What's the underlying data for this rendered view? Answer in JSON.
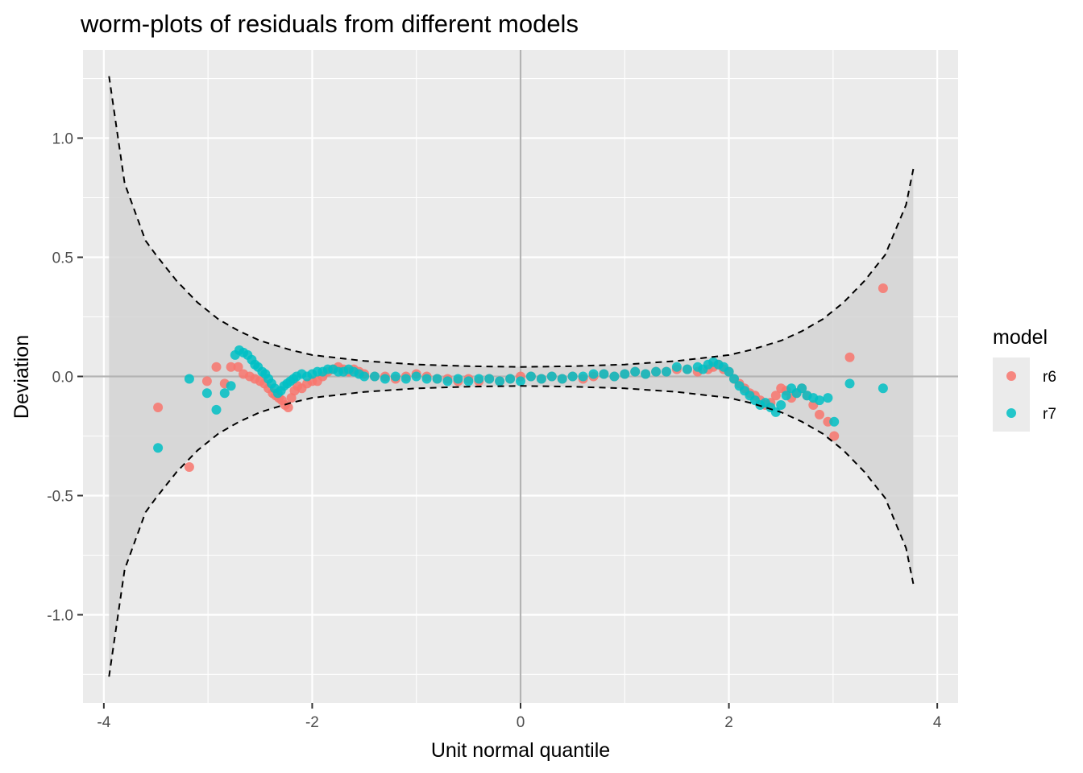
{
  "chart_data": {
    "type": "scatter",
    "title": "worm-plots of residuals from different models",
    "xlabel": "Unit normal quantile",
    "ylabel": "Deviation",
    "xlim": [
      -4.2,
      4.2
    ],
    "ylim": [
      -1.37,
      1.37
    ],
    "x_ticks": [
      -4,
      -2,
      0,
      2,
      4
    ],
    "x_tick_labels": [
      "-4",
      "-2",
      "0",
      "2",
      "4"
    ],
    "y_ticks": [
      -1.0,
      -0.5,
      0.0,
      0.5,
      1.0
    ],
    "y_tick_labels": [
      "-1.0",
      "-0.5",
      "0.0",
      "0.5",
      "1.0"
    ],
    "grid": true,
    "legend": {
      "title": "model",
      "position": "right"
    },
    "reference_lines": {
      "x": 0,
      "y": 0,
      "color": "#b3b3b3"
    },
    "confidence_band": {
      "style": "dashed",
      "fill": "#d3d3d3",
      "x": [
        -3.95,
        -3.8,
        -3.6,
        -3.5,
        -3.3,
        -3.1,
        -2.9,
        -2.7,
        -2.5,
        -2.2,
        -2.0,
        -1.5,
        -1.0,
        -0.5,
        0.0,
        0.5,
        1.0,
        1.5,
        2.0,
        2.2,
        2.5,
        2.7,
        2.9,
        3.1,
        3.3,
        3.5,
        3.7,
        3.77
      ],
      "upper": [
        1.26,
        0.81,
        0.57,
        0.51,
        0.4,
        0.31,
        0.24,
        0.19,
        0.15,
        0.11,
        0.09,
        0.065,
        0.05,
        0.043,
        0.04,
        0.043,
        0.05,
        0.065,
        0.09,
        0.11,
        0.15,
        0.19,
        0.24,
        0.31,
        0.4,
        0.51,
        0.72,
        0.87
      ],
      "lower": [
        -1.26,
        -0.81,
        -0.57,
        -0.51,
        -0.4,
        -0.31,
        -0.24,
        -0.19,
        -0.15,
        -0.11,
        -0.09,
        -0.065,
        -0.05,
        -0.043,
        -0.04,
        -0.043,
        -0.05,
        -0.065,
        -0.09,
        -0.11,
        -0.15,
        -0.19,
        -0.24,
        -0.31,
        -0.4,
        -0.51,
        -0.72,
        -0.87
      ]
    },
    "series": [
      {
        "name": "r6",
        "color": "#F8766D",
        "x": [
          -3.48,
          -3.18,
          -3.01,
          -2.92,
          -2.84,
          -2.78,
          -2.71,
          -2.66,
          -2.6,
          -2.55,
          -2.5,
          -2.46,
          -2.42,
          -2.38,
          -2.35,
          -2.32,
          -2.29,
          -2.26,
          -2.23,
          -2.2,
          -2.17,
          -2.14,
          -2.1,
          -2.05,
          -2.0,
          -1.95,
          -1.9,
          -1.85,
          -1.8,
          -1.75,
          -1.7,
          -1.65,
          -1.6,
          -1.55,
          -1.5,
          -1.4,
          -1.3,
          -1.2,
          -1.1,
          -1.0,
          -0.9,
          -0.8,
          -0.7,
          -0.6,
          -0.5,
          -0.4,
          -0.3,
          -0.2,
          -0.1,
          0.0,
          0.1,
          0.2,
          0.3,
          0.4,
          0.5,
          0.6,
          0.7,
          0.8,
          0.9,
          1.0,
          1.1,
          1.2,
          1.3,
          1.4,
          1.5,
          1.6,
          1.7,
          1.8,
          1.85,
          1.9,
          1.95,
          2.0,
          2.05,
          2.1,
          2.15,
          2.2,
          2.25,
          2.3,
          2.35,
          2.4,
          2.45,
          2.5,
          2.55,
          2.6,
          2.65,
          2.7,
          2.75,
          2.81,
          2.87,
          2.95,
          3.01,
          3.16,
          3.48
        ],
        "y": [
          -0.13,
          -0.38,
          -0.02,
          0.04,
          -0.03,
          0.04,
          0.04,
          0.01,
          0.0,
          -0.01,
          -0.02,
          -0.03,
          -0.05,
          -0.07,
          -0.08,
          -0.09,
          -0.1,
          -0.12,
          -0.13,
          -0.09,
          -0.06,
          -0.04,
          -0.05,
          -0.03,
          -0.02,
          -0.02,
          0.0,
          0.02,
          0.03,
          0.04,
          0.03,
          0.02,
          0.03,
          0.02,
          0.01,
          0.0,
          0.0,
          -0.01,
          0.0,
          0.01,
          0.0,
          -0.01,
          -0.01,
          -0.02,
          -0.01,
          -0.02,
          -0.01,
          -0.02,
          -0.01,
          0.0,
          0.0,
          -0.01,
          0.0,
          -0.01,
          0.0,
          -0.01,
          0.0,
          0.01,
          0.0,
          0.01,
          0.02,
          0.01,
          0.02,
          0.02,
          0.03,
          0.03,
          0.02,
          0.03,
          0.04,
          0.05,
          0.03,
          0.02,
          -0.01,
          -0.03,
          -0.05,
          -0.07,
          -0.08,
          -0.1,
          -0.12,
          -0.11,
          -0.08,
          -0.05,
          -0.06,
          -0.09,
          -0.07,
          -0.05,
          -0.08,
          -0.12,
          -0.16,
          -0.19,
          -0.25,
          0.08,
          0.37
        ]
      },
      {
        "name": "r7",
        "color": "#00BFC4",
        "x": [
          -3.48,
          -3.18,
          -3.01,
          -2.92,
          -2.84,
          -2.78,
          -2.74,
          -2.7,
          -2.66,
          -2.62,
          -2.58,
          -2.55,
          -2.52,
          -2.48,
          -2.45,
          -2.42,
          -2.39,
          -2.36,
          -2.33,
          -2.3,
          -2.27,
          -2.24,
          -2.21,
          -2.18,
          -2.15,
          -2.1,
          -2.05,
          -2.0,
          -1.95,
          -1.9,
          -1.85,
          -1.8,
          -1.75,
          -1.7,
          -1.65,
          -1.6,
          -1.55,
          -1.5,
          -1.4,
          -1.3,
          -1.2,
          -1.1,
          -1.0,
          -0.9,
          -0.8,
          -0.7,
          -0.6,
          -0.5,
          -0.4,
          -0.3,
          -0.2,
          -0.1,
          0.0,
          0.1,
          0.2,
          0.3,
          0.4,
          0.5,
          0.6,
          0.7,
          0.8,
          0.9,
          1.0,
          1.1,
          1.2,
          1.3,
          1.4,
          1.5,
          1.6,
          1.7,
          1.75,
          1.8,
          1.85,
          1.9,
          1.95,
          2.0,
          2.05,
          2.1,
          2.15,
          2.2,
          2.25,
          2.3,
          2.35,
          2.4,
          2.45,
          2.5,
          2.55,
          2.6,
          2.65,
          2.7,
          2.75,
          2.81,
          2.87,
          2.95,
          3.01,
          3.16,
          3.48
        ],
        "y": [
          -0.3,
          -0.01,
          -0.07,
          -0.14,
          -0.07,
          -0.04,
          0.09,
          0.11,
          0.1,
          0.09,
          0.07,
          0.05,
          0.04,
          0.02,
          0.01,
          -0.01,
          -0.03,
          -0.05,
          -0.07,
          -0.06,
          -0.04,
          -0.03,
          -0.02,
          -0.01,
          0.0,
          0.01,
          0.0,
          0.01,
          0.02,
          0.02,
          0.03,
          0.03,
          0.02,
          0.02,
          0.03,
          0.02,
          0.01,
          0.0,
          0.0,
          -0.01,
          0.0,
          -0.01,
          0.0,
          -0.01,
          -0.01,
          -0.02,
          -0.01,
          -0.02,
          -0.01,
          -0.01,
          -0.02,
          -0.01,
          -0.02,
          0.0,
          -0.01,
          0.0,
          -0.01,
          0.0,
          0.0,
          0.01,
          0.01,
          0.0,
          0.01,
          0.02,
          0.01,
          0.02,
          0.02,
          0.04,
          0.03,
          0.04,
          0.03,
          0.05,
          0.06,
          0.05,
          0.04,
          0.02,
          -0.01,
          -0.04,
          -0.06,
          -0.08,
          -0.1,
          -0.12,
          -0.11,
          -0.13,
          -0.15,
          -0.12,
          -0.08,
          -0.05,
          -0.07,
          -0.05,
          -0.08,
          -0.09,
          -0.1,
          -0.09,
          -0.19,
          -0.03,
          -0.05
        ]
      }
    ]
  }
}
